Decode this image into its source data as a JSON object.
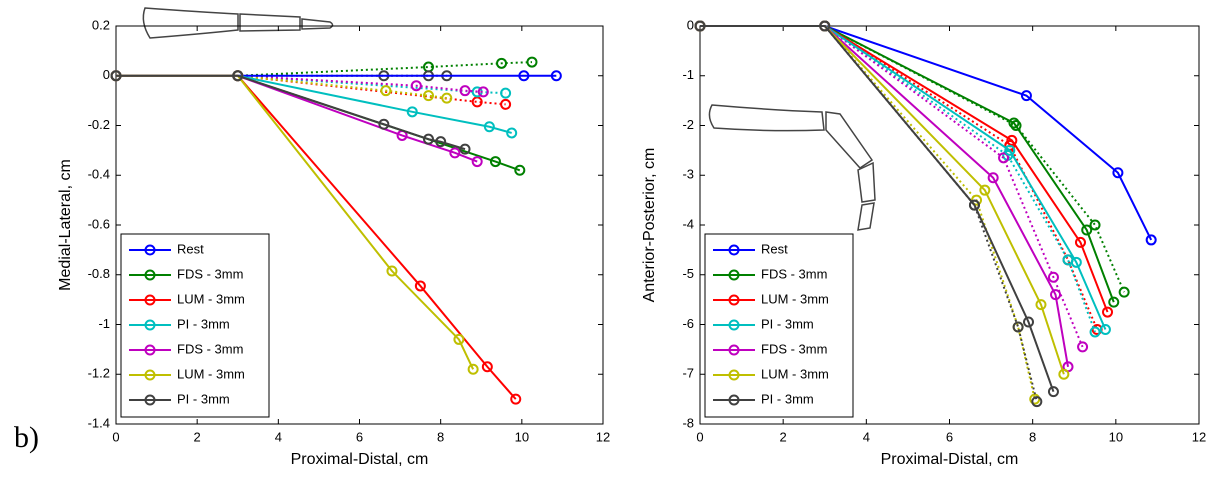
{
  "panel_label": "b)",
  "chart_data": [
    {
      "type": "line",
      "xlabel": "Proximal-Distal, cm",
      "ylabel": "Medial-Lateral, cm",
      "xlim": [
        0,
        12
      ],
      "ylim": [
        -1.4,
        0.2
      ],
      "xticks": [
        0,
        2,
        4,
        6,
        8,
        10,
        12
      ],
      "yticks": [
        0.2,
        0,
        -0.2,
        -0.4,
        -0.6,
        -0.8,
        -1,
        -1.2,
        -1.4
      ],
      "legend": "lower left",
      "series": [
        {
          "name": "Rest",
          "color": "#0000ff",
          "x": [
            0,
            3,
            10.05,
            10.85
          ],
          "values": [
            0,
            0,
            0,
            0
          ]
        },
        {
          "name": "FDS - 3mm",
          "color": "#008000",
          "x": [
            0,
            3,
            9.35,
            9.95
          ],
          "values": [
            0,
            0,
            -0.345,
            -0.38
          ]
        },
        {
          "name": "LUM - 3mm",
          "color": "#ff0000",
          "x": [
            0,
            3,
            7.5,
            9.15,
            9.85
          ],
          "values": [
            0,
            0,
            -0.845,
            -1.17,
            -1.3
          ]
        },
        {
          "name": "PI - 3mm",
          "color": "#00bfbf",
          "x": [
            0,
            3,
            7.3,
            9.2,
            9.75
          ],
          "values": [
            0,
            0,
            -0.145,
            -0.205,
            -0.23
          ]
        },
        {
          "name": "FDS - 3mm",
          "color": "#bf00bf",
          "x": [
            0,
            3,
            7.05,
            8.35,
            8.9
          ],
          "values": [
            0,
            0,
            -0.24,
            -0.31,
            -0.345
          ]
        },
        {
          "name": "LUM - 3mm",
          "color": "#bfbf00",
          "x": [
            0,
            3,
            6.8,
            8.45,
            8.8
          ],
          "values": [
            0,
            0,
            -0.785,
            -1.06,
            -1.18
          ]
        },
        {
          "name": "PI - 3mm",
          "color": "#404040",
          "x": [
            0,
            3,
            6.6,
            7.7,
            8.0,
            8.6
          ],
          "values": [
            0,
            0,
            -0.195,
            -0.255,
            -0.265,
            -0.295
          ]
        },
        {
          "color": "#008000",
          "dashed": true,
          "x": [
            0,
            3,
            7.7,
            9.5,
            10.25
          ],
          "values": [
            0,
            0,
            0.035,
            0.05,
            0.055
          ]
        },
        {
          "color": "#ff0000",
          "dashed": true,
          "x": [
            0,
            3,
            8.9,
            9.6
          ],
          "values": [
            0,
            0,
            -0.105,
            -0.115
          ]
        },
        {
          "color": "#00bfbf",
          "dashed": true,
          "x": [
            0,
            3,
            8.9,
            9.6
          ],
          "values": [
            0,
            0,
            -0.065,
            -0.07
          ]
        },
        {
          "color": "#bf00bf",
          "dashed": true,
          "x": [
            0,
            3,
            7.4,
            8.6,
            9.05
          ],
          "values": [
            0,
            0,
            -0.04,
            -0.06,
            -0.065
          ]
        },
        {
          "color": "#bfbf00",
          "dashed": true,
          "x": [
            0,
            3,
            6.65,
            7.7,
            8.15
          ],
          "values": [
            0,
            0,
            -0.06,
            -0.08,
            -0.09
          ]
        },
        {
          "color": "#404040",
          "dashed": true,
          "x": [
            0,
            3,
            6.6,
            7.7,
            8.15
          ],
          "values": [
            0,
            0,
            0,
            0,
            0
          ]
        }
      ]
    },
    {
      "type": "line",
      "xlabel": "Proximal-Distal, cm",
      "ylabel": "Anterior-Posterior, cm",
      "xlim": [
        0,
        12
      ],
      "ylim": [
        -8,
        0
      ],
      "xticks": [
        0,
        2,
        4,
        6,
        8,
        10,
        12
      ],
      "yticks": [
        0,
        -1,
        -2,
        -3,
        -4,
        -5,
        -6,
        -7,
        -8
      ],
      "legend": "lower left",
      "series": [
        {
          "name": "Rest",
          "color": "#0000ff",
          "x": [
            0,
            3,
            7.85,
            10.05,
            10.85
          ],
          "values": [
            0,
            0,
            -1.4,
            -2.95,
            -4.3
          ]
        },
        {
          "name": "FDS - 3mm",
          "color": "#008000",
          "x": [
            0,
            3,
            7.55,
            9.3,
            9.95
          ],
          "values": [
            0,
            0,
            -1.95,
            -4.1,
            -5.55
          ]
        },
        {
          "name": "LUM - 3mm",
          "color": "#ff0000",
          "x": [
            0,
            3,
            7.5,
            9.15,
            9.8
          ],
          "values": [
            0,
            0,
            -2.3,
            -4.35,
            -5.75
          ]
        },
        {
          "name": "PI - 3mm",
          "color": "#00bfbf",
          "x": [
            0,
            3,
            7.45,
            9.05,
            9.75
          ],
          "values": [
            0,
            0,
            -2.5,
            -4.75,
            -6.1
          ]
        },
        {
          "name": "FDS - 3mm",
          "color": "#bf00bf",
          "x": [
            0,
            3,
            7.05,
            8.55,
            8.85
          ],
          "values": [
            0,
            0,
            -3.05,
            -5.4,
            -6.85
          ]
        },
        {
          "name": "LUM - 3mm",
          "color": "#bfbf00",
          "x": [
            0,
            3,
            6.85,
            8.2,
            8.75
          ],
          "values": [
            0,
            0,
            -3.3,
            -5.6,
            -7.0
          ]
        },
        {
          "name": "PI - 3mm",
          "color": "#404040",
          "x": [
            0,
            3,
            6.6,
            7.9,
            8.5
          ],
          "values": [
            0,
            0,
            -3.6,
            -5.95,
            -7.35
          ]
        },
        {
          "color": "#008000",
          "dashed": true,
          "x": [
            0,
            3,
            7.6,
            9.5,
            10.2
          ],
          "values": [
            0,
            0,
            -2.0,
            -4.0,
            -5.35
          ]
        },
        {
          "color": "#ff0000",
          "dashed": true,
          "x": [
            0,
            3,
            7.45,
            8.85,
            9.55
          ],
          "values": [
            0,
            0,
            -2.4,
            -4.7,
            -6.1
          ]
        },
        {
          "color": "#00bfbf",
          "dashed": true,
          "x": [
            0,
            3,
            7.4,
            8.85,
            9.5
          ],
          "values": [
            0,
            0,
            -2.6,
            -4.7,
            -6.15
          ]
        },
        {
          "color": "#bf00bf",
          "dashed": true,
          "x": [
            0,
            3,
            7.3,
            8.5,
            9.2
          ],
          "values": [
            0,
            0,
            -2.65,
            -5.05,
            -6.45
          ]
        },
        {
          "color": "#bfbf00",
          "dashed": true,
          "x": [
            0,
            3,
            6.65,
            7.65,
            8.05
          ],
          "values": [
            0,
            0,
            -3.5,
            -6.05,
            -7.5
          ]
        },
        {
          "color": "#404040",
          "dashed": true,
          "x": [
            0,
            3,
            6.6,
            7.65,
            8.1
          ],
          "values": [
            0,
            0,
            -3.6,
            -6.05,
            -7.55
          ]
        }
      ]
    }
  ]
}
